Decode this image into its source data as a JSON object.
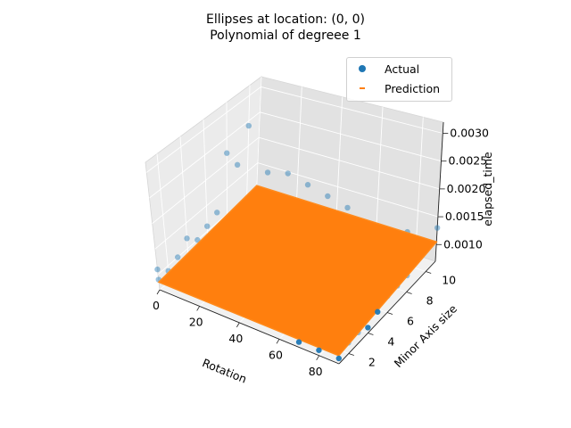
{
  "chart_data": {
    "type": "scatter",
    "title": "Ellipses at location: (0, 0)",
    "subtitle": "Polynomial of degreee 1",
    "xlabel": "Rotation",
    "ylabel": "Minor Axis size",
    "zlabel": "elapsed_time",
    "xlim": [
      0,
      90
    ],
    "ylim": [
      1,
      11
    ],
    "zlim": [
      0.0007,
      0.0032
    ],
    "x_ticks": [
      "0",
      "20",
      "40",
      "60",
      "80"
    ],
    "y_ticks": [
      "2",
      "4",
      "6",
      "8",
      "10"
    ],
    "z_ticks": [
      "0.0010",
      "0.0015",
      "0.0020",
      "0.0025",
      "0.0030"
    ],
    "legend": {
      "placement": "top-right",
      "entries": [
        "Actual",
        "Prediction"
      ]
    },
    "colors": {
      "actual": "#1f77b4",
      "prediction": "#ff7f0e"
    },
    "prediction_plane": {
      "x_range": [
        0,
        90
      ],
      "y_range": [
        1,
        11
      ],
      "z_corners": {
        "x0_y1": 0.00085,
        "x90_y1": 0.00085,
        "x0_y11": 0.00105,
        "x90_y11": 0.00105
      }
    },
    "series": [
      {
        "name": "Actual",
        "points": [
          {
            "x": 0,
            "y": 1,
            "z": 0.0011
          },
          {
            "x": 0,
            "y": 1,
            "z": 0.0009
          },
          {
            "x": 0,
            "y": 2,
            "z": 0.0009
          },
          {
            "x": 0,
            "y": 3,
            "z": 0.001
          },
          {
            "x": 0,
            "y": 4,
            "z": 0.0012
          },
          {
            "x": 0,
            "y": 5,
            "z": 0.001
          },
          {
            "x": 0,
            "y": 6,
            "z": 0.0011
          },
          {
            "x": 0,
            "y": 7,
            "z": 0.0012
          },
          {
            "x": 0,
            "y": 8,
            "z": 0.0022
          },
          {
            "x": 0,
            "y": 9,
            "z": 0.0018
          },
          {
            "x": 0,
            "y": 10,
            "z": 0.0024
          },
          {
            "x": 10,
            "y": 1,
            "z": 0.0012
          },
          {
            "x": 10,
            "y": 10,
            "z": 0.0016
          },
          {
            "x": 20,
            "y": 1,
            "z": 0.0009
          },
          {
            "x": 20,
            "y": 3,
            "z": 0.0013
          },
          {
            "x": 20,
            "y": 10,
            "z": 0.0017
          },
          {
            "x": 30,
            "y": 1,
            "z": 0.001
          },
          {
            "x": 30,
            "y": 10,
            "z": 0.0016
          },
          {
            "x": 40,
            "y": 1,
            "z": 0.0009
          },
          {
            "x": 40,
            "y": 10,
            "z": 0.0015
          },
          {
            "x": 50,
            "y": 1,
            "z": 0.001
          },
          {
            "x": 50,
            "y": 10,
            "z": 0.0014
          },
          {
            "x": 60,
            "y": 10,
            "z": 0.0012
          },
          {
            "x": 70,
            "y": 1,
            "z": 0.0008
          },
          {
            "x": 70,
            "y": 10,
            "z": 0.0011
          },
          {
            "x": 80,
            "y": 1,
            "z": 0.0008
          },
          {
            "x": 80,
            "y": 10,
            "z": 0.0013
          },
          {
            "x": 90,
            "y": 1,
            "z": 0.0008
          },
          {
            "x": 90,
            "y": 2,
            "z": 0.0009
          },
          {
            "x": 90,
            "y": 3,
            "z": 0.0009
          },
          {
            "x": 90,
            "y": 4,
            "z": 0.0008
          },
          {
            "x": 90,
            "y": 5,
            "z": 0.0009
          },
          {
            "x": 90,
            "y": 6,
            "z": 0.001
          },
          {
            "x": 90,
            "y": 7,
            "z": 0.001
          },
          {
            "x": 90,
            "y": 8,
            "z": 0.001
          },
          {
            "x": 90,
            "y": 9,
            "z": 0.0011
          },
          {
            "x": 90,
            "y": 10,
            "z": 0.0012
          },
          {
            "x": 90,
            "y": 11,
            "z": 0.0013
          }
        ]
      }
    ]
  }
}
